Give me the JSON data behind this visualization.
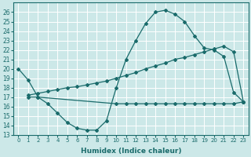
{
  "xlabel": "Humidex (Indice chaleur)",
  "bg_color": "#cce8e8",
  "line_color": "#1a6b6b",
  "grid_color": "#ffffff",
  "xlim": [
    -0.5,
    23.5
  ],
  "ylim": [
    13,
    27
  ],
  "yticks": [
    13,
    14,
    15,
    16,
    17,
    18,
    19,
    20,
    21,
    22,
    23,
    24,
    25,
    26
  ],
  "xticks": [
    0,
    1,
    2,
    3,
    4,
    5,
    6,
    7,
    8,
    9,
    10,
    11,
    12,
    13,
    14,
    15,
    16,
    17,
    18,
    19,
    20,
    21,
    22,
    23
  ],
  "line1_x": [
    0,
    1,
    2,
    3,
    4,
    5,
    6,
    7,
    8,
    9,
    10,
    11,
    12,
    13,
    14,
    15,
    16,
    17,
    18,
    19,
    20,
    21,
    22,
    23
  ],
  "line1_y": [
    20.0,
    18.8,
    17.0,
    16.3,
    15.3,
    14.3,
    13.7,
    13.5,
    13.5,
    14.5,
    18.0,
    21.0,
    23.0,
    24.8,
    26.0,
    26.2,
    25.8,
    25.0,
    23.5,
    22.2,
    22.0,
    21.3,
    17.5,
    16.5
  ],
  "line2_x": [
    1,
    2,
    10,
    11,
    12,
    13,
    14,
    15,
    16,
    17,
    18,
    19,
    20,
    21,
    22,
    23
  ],
  "line2_y": [
    17.0,
    17.0,
    16.3,
    16.3,
    16.3,
    16.3,
    16.3,
    16.3,
    16.3,
    16.3,
    16.3,
    16.3,
    16.3,
    16.3,
    16.3,
    16.5
  ],
  "line3_x": [
    1,
    2,
    3,
    4,
    5,
    6,
    7,
    8,
    9,
    10,
    11,
    12,
    13,
    14,
    15,
    16,
    17,
    18,
    19,
    20,
    21,
    22,
    23
  ],
  "line3_y": [
    17.2,
    17.4,
    17.6,
    17.8,
    18.0,
    18.1,
    18.3,
    18.5,
    18.7,
    19.0,
    19.3,
    19.6,
    20.0,
    20.3,
    20.6,
    21.0,
    21.2,
    21.5,
    21.8,
    22.1,
    22.4,
    21.8,
    16.5
  ],
  "font_size": 6.5,
  "marker": "D",
  "marker_size": 2.0
}
